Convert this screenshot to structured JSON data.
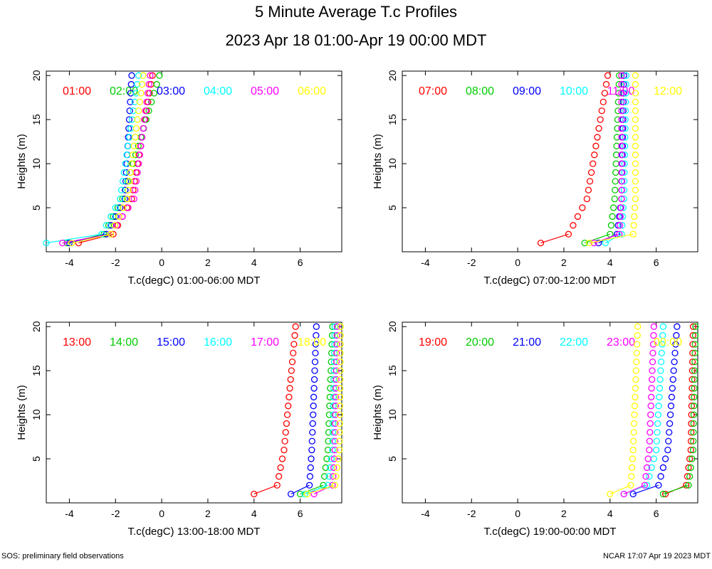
{
  "title": "5 Minute Average T.c Profiles",
  "subtitle": "2023 Apr 18 01:00-Apr 19 00:00 MDT",
  "footer": {
    "left": "SOS: preliminary field observations",
    "right": "NCAR 17:07 Apr 19 2023 MDT"
  },
  "colors": [
    "#ff0000",
    "#00cc00",
    "#0000ff",
    "#00ffff",
    "#ff00ff",
    "#ffff00"
  ],
  "chart_data": [
    {
      "type": "scatter",
      "xlabel": "T.c(degC) 01:00-06:00 MDT",
      "ylabel": "Heights (m)",
      "xlim": [
        -5,
        7.8
      ],
      "ylim": [
        0,
        20.5
      ],
      "xticks": [
        -4,
        -2,
        0,
        2,
        4,
        6
      ],
      "yticks": [
        5,
        10,
        15,
        20
      ],
      "series": [
        {
          "name": "01:00",
          "x_low": [
            -3.6,
            -2.1
          ],
          "x_top": -0.4,
          "x_bend": -1.3,
          "bend": 6
        },
        {
          "name": "02:00",
          "x_low": [
            -4.1,
            -2.5
          ],
          "x_top": -0.1,
          "x_bend": -1.7,
          "bend": 6
        },
        {
          "name": "03:00",
          "x_low": [
            -4.0,
            -2.4
          ],
          "x_top": -1.3,
          "x_bend": -1.6,
          "bend": 6
        },
        {
          "name": "04:00",
          "x_low": [
            -5.0,
            -2.6
          ],
          "x_top": -1.0,
          "x_bend": -1.8,
          "bend": 6
        },
        {
          "name": "05:00",
          "x_low": [
            -4.3,
            -2.2
          ],
          "x_top": -0.5,
          "x_bend": -1.2,
          "bend": 6
        },
        {
          "name": "06:00",
          "x_low": [
            -3.9,
            -2.2
          ],
          "x_top": -0.8,
          "x_bend": -1.5,
          "bend": 6
        }
      ]
    },
    {
      "type": "scatter",
      "xlabel": "T.c(degC) 07:00-12:00 MDT",
      "ylabel": "Heights (m)",
      "xlim": [
        -5,
        7.8
      ],
      "ylim": [
        0,
        20.5
      ],
      "xticks": [
        -4,
        -2,
        0,
        2,
        4,
        6
      ],
      "yticks": [
        5,
        10,
        15,
        20
      ],
      "series": [
        {
          "name": "07:00",
          "x_low": [
            1.0,
            2.2
          ],
          "x_top": 3.9,
          "x_bend": 3.0,
          "bend": 6
        },
        {
          "name": "08:00",
          "x_low": [
            2.9,
            4.0
          ],
          "x_top": 4.4,
          "x_bend": 4.2,
          "bend": 6
        },
        {
          "name": "09:00",
          "x_low": [
            3.5,
            4.3
          ],
          "x_top": 4.6,
          "x_bend": 4.5,
          "bend": 6
        },
        {
          "name": "10:00",
          "x_low": [
            3.8,
            4.5
          ],
          "x_top": 4.7,
          "x_bend": 4.6,
          "bend": 6
        },
        {
          "name": "11:00",
          "x_low": [
            3.3,
            4.4
          ],
          "x_top": 4.5,
          "x_bend": 4.5,
          "bend": 6
        },
        {
          "name": "12:00",
          "x_low": [
            3.1,
            5.0
          ],
          "x_top": 5.1,
          "x_bend": 5.1,
          "bend": 6
        }
      ]
    },
    {
      "type": "scatter",
      "xlabel": "T.c(degC) 13:00-18:00 MDT",
      "ylabel": "Heights (m)",
      "xlim": [
        -5,
        7.8
      ],
      "ylim": [
        0,
        20.5
      ],
      "xticks": [
        -4,
        -2,
        0,
        2,
        4,
        6
      ],
      "yticks": [
        5,
        10,
        15,
        20
      ],
      "series": [
        {
          "name": "13:00",
          "x_low": [
            4.0,
            5.0
          ],
          "x_top": 5.8,
          "x_bend": 5.3,
          "bend": 6
        },
        {
          "name": "14:00",
          "x_low": [
            6.0,
            7.0
          ],
          "x_top": 7.4,
          "x_bend": 7.2,
          "bend": 6
        },
        {
          "name": "15:00",
          "x_low": [
            5.6,
            6.4
          ],
          "x_top": 6.7,
          "x_bend": 6.5,
          "bend": 6
        },
        {
          "name": "16:00",
          "x_low": [
            6.2,
            7.2
          ],
          "x_top": 7.5,
          "x_bend": 7.4,
          "bend": 6
        },
        {
          "name": "17:00",
          "x_low": [
            6.6,
            7.4
          ],
          "x_top": 7.6,
          "x_bend": 7.5,
          "bend": 6
        },
        {
          "name": "18:00",
          "x_low": [
            6.3,
            7.5
          ],
          "x_top": 7.75,
          "x_bend": 7.7,
          "bend": 6
        }
      ]
    },
    {
      "type": "scatter",
      "xlabel": "T.c(degC) 19:00-00:00 MDT",
      "ylabel": "Heights (m)",
      "xlim": [
        -5,
        7.8
      ],
      "ylim": [
        0,
        20.5
      ],
      "xticks": [
        -4,
        -2,
        0,
        2,
        4,
        6
      ],
      "yticks": [
        5,
        10,
        15,
        20
      ],
      "series": [
        {
          "name": "19:00",
          "x_low": [
            6.4,
            7.3
          ],
          "x_top": 7.6,
          "x_bend": 7.5,
          "bend": 6
        },
        {
          "name": "20:00",
          "x_low": [
            6.3,
            7.4
          ],
          "x_top": 7.7,
          "x_bend": 7.6,
          "bend": 6
        },
        {
          "name": "21:00",
          "x_low": [
            5.0,
            6.1
          ],
          "x_top": 6.9,
          "x_bend": 6.5,
          "bend": 6
        },
        {
          "name": "22:00",
          "x_low": [
            4.6,
            5.6
          ],
          "x_top": 6.3,
          "x_bend": 6.0,
          "bend": 6
        },
        {
          "name": "23:00",
          "x_low": [
            4.6,
            5.5
          ],
          "x_top": 5.9,
          "x_bend": 5.7,
          "bend": 6
        },
        {
          "name": "00:00",
          "x_low": [
            4.0,
            4.9
          ],
          "x_top": 5.2,
          "x_bend": 5.0,
          "bend": 6
        }
      ]
    }
  ]
}
